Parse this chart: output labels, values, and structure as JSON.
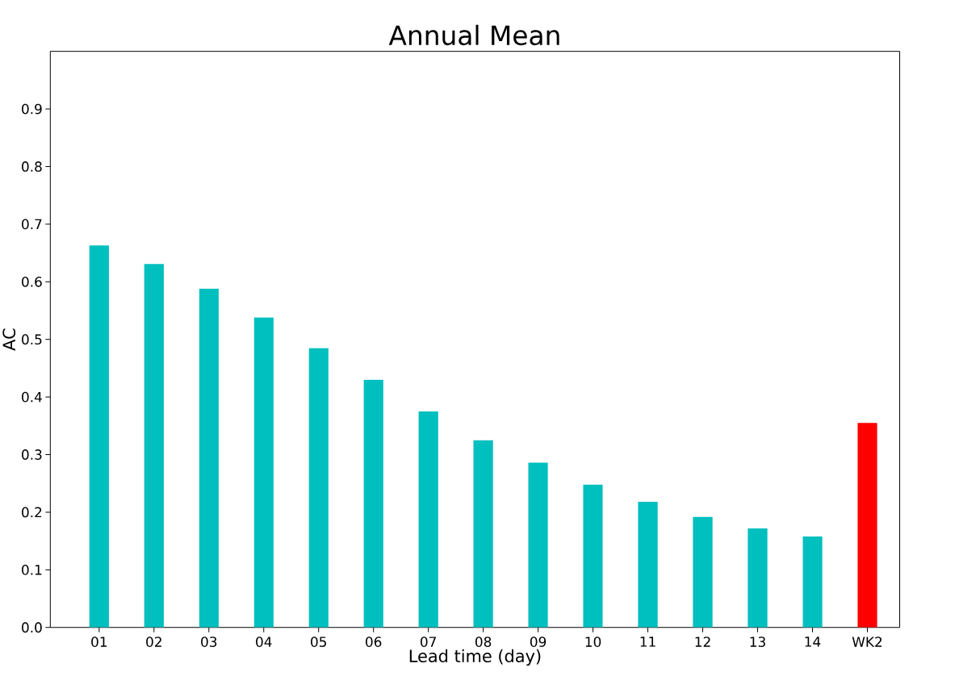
{
  "chart_data": {
    "type": "bar",
    "title": "Annual Mean",
    "xlabel": "Lead time (day)",
    "ylabel": "AC",
    "categories": [
      "01",
      "02",
      "03",
      "04",
      "05",
      "06",
      "07",
      "08",
      "09",
      "10",
      "11",
      "12",
      "13",
      "14",
      "WK2"
    ],
    "values": [
      0.663,
      0.631,
      0.588,
      0.538,
      0.485,
      0.43,
      0.375,
      0.325,
      0.286,
      0.248,
      0.218,
      0.192,
      0.172,
      0.158,
      0.355
    ],
    "colors": [
      "#00bfbf",
      "#00bfbf",
      "#00bfbf",
      "#00bfbf",
      "#00bfbf",
      "#00bfbf",
      "#00bfbf",
      "#00bfbf",
      "#00bfbf",
      "#00bfbf",
      "#00bfbf",
      "#00bfbf",
      "#00bfbf",
      "#00bfbf",
      "#ff0000"
    ],
    "ylim": [
      0,
      1
    ],
    "yticks": [
      {
        "value": 0,
        "label": "0.0"
      },
      {
        "value": 0.1,
        "label": "0.1"
      },
      {
        "value": 0.2,
        "label": "0.2"
      },
      {
        "value": 0.3,
        "label": "0.3"
      },
      {
        "value": 0.4,
        "label": "0.4"
      },
      {
        "value": 0.5,
        "label": "0.5"
      },
      {
        "value": 0.6,
        "label": "0.6"
      },
      {
        "value": 0.7,
        "label": "0.7"
      },
      {
        "value": 0.8,
        "label": "0.8"
      },
      {
        "value": 0.9,
        "label": "0.9"
      }
    ],
    "grid": false
  }
}
